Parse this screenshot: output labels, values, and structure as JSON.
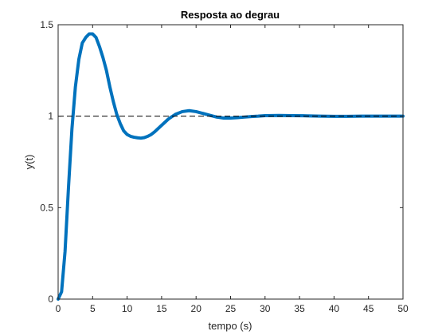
{
  "chart_data": {
    "type": "line",
    "title": "Resposta ao degrau",
    "xlabel": "tempo (s)",
    "ylabel": "y(t)",
    "xlim": [
      0,
      50
    ],
    "ylim": [
      0,
      1.5
    ],
    "xticks": [
      "0",
      "5",
      "10",
      "15",
      "20",
      "25",
      "30",
      "35",
      "40",
      "45",
      "50"
    ],
    "yticks": [
      "0",
      "0.5",
      "1",
      "1.5"
    ],
    "grid": false,
    "legend": "none",
    "series": [
      {
        "color": "#0072BD",
        "x": [
          0,
          0.5,
          1,
          1.5,
          2,
          2.5,
          3,
          3.5,
          4,
          4.5,
          5,
          5.5,
          6,
          6.5,
          7,
          7.5,
          8,
          8.5,
          9,
          9.5,
          10,
          10.5,
          11,
          11.5,
          12,
          12.5,
          13,
          13.5,
          14,
          15,
          16,
          17,
          18,
          19,
          20,
          21,
          22,
          23,
          24,
          25,
          26,
          27,
          28,
          29,
          30,
          32,
          34,
          36,
          38,
          40,
          42,
          44,
          46,
          48,
          50
        ],
        "y": [
          0,
          0.04,
          0.26,
          0.61,
          0.93,
          1.16,
          1.31,
          1.4,
          1.43,
          1.45,
          1.45,
          1.43,
          1.38,
          1.32,
          1.25,
          1.16,
          1.08,
          1.01,
          0.96,
          0.92,
          0.9,
          0.89,
          0.885,
          0.882,
          0.88,
          0.883,
          0.89,
          0.9,
          0.915,
          0.95,
          0.985,
          1.01,
          1.025,
          1.03,
          1.025,
          1.015,
          1.005,
          0.995,
          0.99,
          0.99,
          0.992,
          0.995,
          0.998,
          1.0,
          1.003,
          1.004,
          1.003,
          1.002,
          1.0,
          0.999,
          0.999,
          1.0,
          1.0,
          1.0,
          1.0
        ]
      },
      {
        "color": "#000000",
        "style": "dashed",
        "x": [
          0,
          50
        ],
        "y": [
          1,
          1
        ]
      }
    ]
  }
}
